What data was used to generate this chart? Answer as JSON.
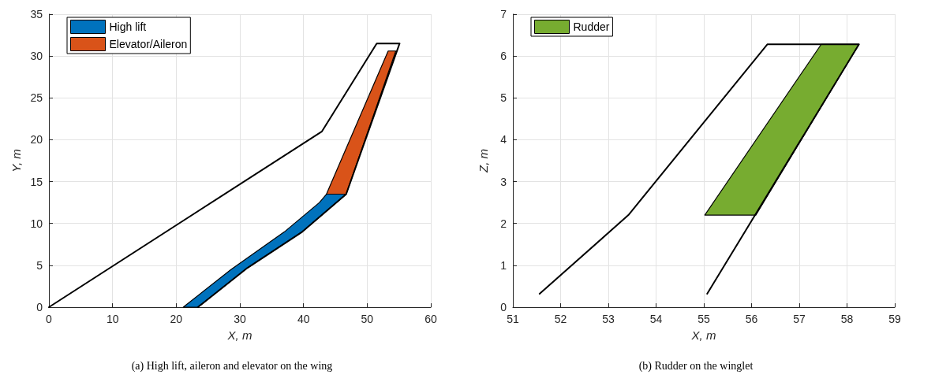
{
  "chart_data": [
    {
      "type": "line",
      "title": "(a) High lift, aileron and elevator on the wing",
      "xlabel": "X, m",
      "ylabel": "Y, m",
      "xlim": [
        0,
        60
      ],
      "ylim": [
        0,
        35
      ],
      "xticks": [
        0,
        10,
        20,
        30,
        40,
        50,
        60
      ],
      "yticks": [
        0,
        5,
        10,
        15,
        20,
        25,
        30,
        35
      ],
      "grid": true,
      "legend": "top left",
      "marker": "none",
      "line_style": "solid",
      "series": [
        {
          "color": "#000000",
          "x": [
            0,
            42.9,
            51.5,
            55.1,
            46.7,
            39.8,
            31.2,
            23.4
          ],
          "values": [
            0,
            21,
            31.5,
            31.5,
            13.5,
            9,
            4.7,
            0
          ]
        },
        {
          "type": "area",
          "name": "High lift",
          "color": "#0072bd",
          "x": [
            21.1,
            28.6,
            37,
            42.5,
            43.6,
            46.7,
            39.8,
            31.2,
            23.4
          ],
          "values": [
            0,
            4.5,
            9,
            12.5,
            13.5,
            13.5,
            9,
            4.7,
            0
          ]
        },
        {
          "type": "area",
          "name": "Elevator/Aileron",
          "color": "#d95319",
          "x": [
            43.6,
            46.7,
            54.5,
            53.3
          ],
          "values": [
            13.5,
            13.5,
            30.6,
            30.6
          ]
        }
      ]
    },
    {
      "type": "line",
      "title": "(b) Rudder on the winglet",
      "xlabel": "X, m",
      "ylabel": "Z, m",
      "xlim": [
        51,
        59
      ],
      "ylim": [
        0,
        7
      ],
      "xticks": [
        51,
        52,
        53,
        54,
        55,
        56,
        57,
        58,
        59
      ],
      "yticks": [
        0,
        1,
        2,
        3,
        4,
        5,
        6,
        7
      ],
      "grid": true,
      "legend": "top left",
      "marker": "none",
      "line_style": "solid",
      "series": [
        {
          "color": "#000000",
          "x": [
            51.56,
            53.42,
            56.33,
            58.25,
            55.07
          ],
          "values": [
            0.32,
            2.2,
            6.28,
            6.28,
            0.32
          ]
        },
        {
          "type": "area",
          "name": "Rudder",
          "color": "#77ac30",
          "x": [
            55.02,
            56.09,
            58.25,
            57.46
          ],
          "values": [
            2.2,
            2.2,
            6.28,
            6.28
          ]
        }
      ]
    }
  ]
}
